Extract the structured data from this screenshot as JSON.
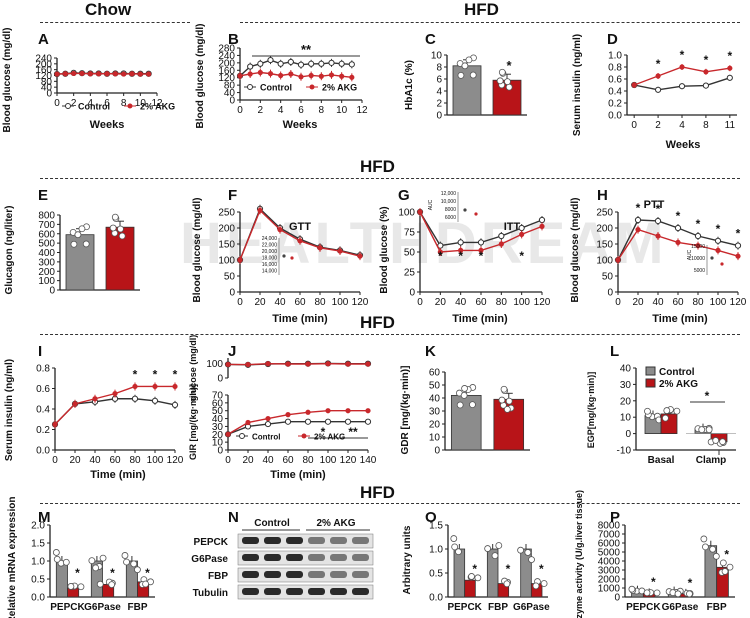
{
  "headers": {
    "chow": "Chow",
    "hfd1": "HFD",
    "hfd2": "HFD",
    "hfd3": "HFD",
    "hfd4": "HFD"
  },
  "watermark": "HEALTHDREAM",
  "legend": {
    "control": "Control",
    "akg": "2% AKG"
  },
  "colors": {
    "control": "#ffffff",
    "akg": "#c31a20",
    "gray_bar": "#8c8c8c",
    "red_bar": "#b81418",
    "line_red": "#c8282c"
  },
  "panels": {
    "A": {
      "label": "A",
      "ylabel": "Blood glucose (mg/dl)",
      "xlabel": "Weeks",
      "yticks": [
        "0",
        "40",
        "80",
        "120",
        "160",
        "200",
        "240"
      ],
      "xticks": [
        "0",
        "2",
        "4",
        "6",
        "8",
        "10",
        "12"
      ]
    },
    "B": {
      "label": "B",
      "ylabel": "Blood glucose (mg/dl)",
      "xlabel": "Weeks",
      "sig": "**",
      "yticks": [
        "0",
        "40",
        "80",
        "120",
        "160",
        "200",
        "240",
        "280"
      ],
      "xticks": [
        "0",
        "2",
        "4",
        "6",
        "8",
        "10",
        "12"
      ]
    },
    "C": {
      "label": "C",
      "ylabel": "HbA1c (%)",
      "sig": "*",
      "yticks": [
        "0",
        "2",
        "4",
        "6",
        "8",
        "10"
      ]
    },
    "D": {
      "label": "D",
      "ylabel": "Serum insulin (ng/ml)",
      "xlabel": "Weeks",
      "yticks": [
        "0.0",
        "0.2",
        "0.4",
        "0.6",
        "0.8",
        "1.0"
      ],
      "xticks": [
        "0",
        "2",
        "4",
        "8",
        "11"
      ]
    },
    "E": {
      "label": "E",
      "ylabel": "Glucagon (ng/liter)",
      "yticks": [
        "0",
        "100",
        "200",
        "300",
        "400",
        "500",
        "600",
        "700",
        "800"
      ]
    },
    "F": {
      "label": "F",
      "ylabel": "Blood glucose (mg/dl)",
      "xlabel": "Time (min)",
      "title": "GTT",
      "yticks": [
        "0",
        "50",
        "100",
        "150",
        "200",
        "250"
      ],
      "xticks": [
        "0",
        "20",
        "40",
        "60",
        "80",
        "100",
        "120"
      ],
      "inset_yticks": [
        "24,000",
        "22,000",
        "20,000",
        "18,000",
        "16,000",
        "14,000"
      ]
    },
    "G": {
      "label": "G",
      "ylabel": "Blood glucose (%)",
      "xlabel": "Time (min)",
      "title": "ITT",
      "yticks": [
        "0",
        "25",
        "50",
        "75",
        "100"
      ],
      "xticks": [
        "0",
        "20",
        "40",
        "60",
        "80",
        "100",
        "120"
      ],
      "inset_label": "AUC",
      "inset_yticks": [
        "12,000",
        "10,000",
        "8000",
        "6000"
      ]
    },
    "H": {
      "label": "H",
      "ylabel": "Blood glucose (mg/dl)",
      "xlabel": "Time (min)",
      "title": "PTT",
      "yticks": [
        "0",
        "50",
        "100",
        "150",
        "200",
        "250"
      ],
      "xticks": [
        "0",
        "20",
        "40",
        "60",
        "80",
        "100",
        "120"
      ],
      "inset_label": "AUC",
      "inset_yticks": [
        "15000",
        "10000",
        "5000"
      ]
    },
    "I": {
      "label": "I",
      "ylabel": "Serum insulin (ng/ml)",
      "xlabel": "Time (min)",
      "yticks": [
        "0.0",
        "0.2",
        "0.4",
        "0.6",
        "0.8"
      ],
      "xticks": [
        "0",
        "20",
        "40",
        "60",
        "80",
        "100",
        "120"
      ]
    },
    "J": {
      "label": "J",
      "ylabel_top": "glucose (mg/dl)",
      "ylabel_bottom": "GIR [mg/(kg·min)]",
      "xlabel": "Time (min)",
      "yticks_top": [
        "0",
        "100"
      ],
      "yticks_bottom": [
        "0",
        "10",
        "20",
        "30",
        "40",
        "50",
        "60",
        "70"
      ],
      "xticks": [
        "0",
        "20",
        "40",
        "60",
        "80",
        "100",
        "120",
        "140"
      ],
      "sig1": "*",
      "sig2": "**"
    },
    "K": {
      "label": "K",
      "ylabel": "GDR [mg/(kg·min)]",
      "yticks": [
        "0",
        "10",
        "20",
        "30",
        "40",
        "50",
        "60"
      ]
    },
    "L": {
      "label": "L",
      "ylabel": "EGP[mg/(kg·min)]",
      "yticks": [
        "-10",
        "0",
        "10",
        "20",
        "30",
        "40"
      ],
      "xticks": [
        "Basal",
        "Clamp"
      ],
      "sig": "*"
    },
    "M": {
      "label": "M",
      "ylabel": "Relative mRNA expression",
      "yticks": [
        "0.0",
        "0.5",
        "1.0",
        "1.5",
        "2.0"
      ],
      "xticks": [
        "PEPCK",
        "G6Pase",
        "FBP"
      ]
    },
    "N": {
      "label": "N",
      "group1": "Control",
      "group2": "2% AKG",
      "rows": [
        "PEPCK",
        "G6Pase",
        "FBP",
        "Tubulin"
      ]
    },
    "O": {
      "label": "O",
      "ylabel": "Arbitrary units",
      "yticks": [
        "0.0",
        "0.5",
        "1.0",
        "1.5"
      ],
      "xticks": [
        "PEPCK",
        "FBP",
        "G6Pase"
      ]
    },
    "P": {
      "label": "P",
      "ylabel": "Enzyme activity (U/g.liver tissue)",
      "yticks": [
        "0",
        "1000",
        "2000",
        "3000",
        "4000",
        "5000",
        "6000",
        "7000",
        "8000"
      ],
      "xticks": [
        "PEPCK",
        "G6Pase",
        "FBP"
      ]
    }
  },
  "chart_data": [
    {
      "panel": "A",
      "type": "line",
      "x": [
        0,
        1,
        2,
        3,
        4,
        5,
        6,
        7,
        8,
        9,
        10,
        11
      ],
      "ylim": [
        0,
        240
      ],
      "xlim": [
        0,
        12
      ],
      "series": [
        {
          "name": "Control",
          "values": [
            130,
            132,
            138,
            136,
            134,
            134,
            132,
            134,
            134,
            132,
            132,
            132
          ]
        },
        {
          "name": "2% AKG",
          "values": [
            130,
            132,
            134,
            134,
            132,
            132,
            132,
            132,
            130,
            132,
            130,
            130
          ]
        }
      ]
    },
    {
      "panel": "B",
      "type": "line",
      "x": [
        0,
        1,
        2,
        3,
        4,
        5,
        6,
        7,
        8,
        9,
        10,
        11
      ],
      "ylim": [
        0,
        280
      ],
      "xlim": [
        0,
        12
      ],
      "series": [
        {
          "name": "Control",
          "values": [
            130,
            180,
            195,
            215,
            195,
            205,
            190,
            195,
            195,
            200,
            195,
            192
          ]
        },
        {
          "name": "2% AKG",
          "values": [
            130,
            140,
            148,
            142,
            132,
            140,
            125,
            132,
            128,
            135,
            128,
            122
          ]
        }
      ]
    },
    {
      "panel": "C",
      "type": "bar",
      "categories": [
        "Control",
        "2% AKG"
      ],
      "values": [
        8.2,
        5.8
      ],
      "ylim": [
        0,
        10
      ]
    },
    {
      "panel": "D",
      "type": "line",
      "categories": [
        "0",
        "2",
        "4",
        "8",
        "11"
      ],
      "ylim": [
        0,
        1.0
      ],
      "series": [
        {
          "name": "Control",
          "values": [
            0.5,
            0.42,
            0.48,
            0.49,
            0.62
          ]
        },
        {
          "name": "2% AKG",
          "values": [
            0.5,
            0.65,
            0.8,
            0.72,
            0.78
          ]
        }
      ]
    },
    {
      "panel": "E",
      "type": "bar",
      "categories": [
        "Control",
        "2% AKG"
      ],
      "values": [
        590,
        670
      ],
      "ylim": [
        0,
        800
      ]
    },
    {
      "panel": "F",
      "type": "line",
      "x": [
        0,
        20,
        40,
        60,
        80,
        100,
        120
      ],
      "ylim": [
        0,
        250
      ],
      "series": [
        {
          "name": "Control",
          "values": [
            100,
            260,
            200,
            165,
            140,
            130,
            115
          ]
        },
        {
          "name": "2% AKG",
          "values": [
            100,
            255,
            195,
            160,
            138,
            128,
            112
          ]
        }
      ]
    },
    {
      "panel": "G",
      "type": "line",
      "x": [
        0,
        20,
        40,
        60,
        80,
        100,
        120
      ],
      "ylim": [
        0,
        100
      ],
      "series": [
        {
          "name": "Control",
          "values": [
            100,
            58,
            62,
            62,
            70,
            80,
            90
          ]
        },
        {
          "name": "2% AKG",
          "values": [
            100,
            50,
            52,
            52,
            60,
            72,
            82
          ]
        }
      ]
    },
    {
      "panel": "H",
      "type": "line",
      "x": [
        0,
        20,
        40,
        60,
        80,
        100,
        120
      ],
      "ylim": [
        0,
        250
      ],
      "series": [
        {
          "name": "Control",
          "values": [
            100,
            225,
            222,
            200,
            175,
            160,
            145
          ]
        },
        {
          "name": "2% AKG",
          "values": [
            100,
            195,
            175,
            155,
            145,
            130,
            112
          ]
        }
      ]
    },
    {
      "panel": "I",
      "type": "line",
      "x": [
        0,
        20,
        40,
        60,
        80,
        100,
        120
      ],
      "ylim": [
        0,
        0.8
      ],
      "series": [
        {
          "name": "Control",
          "values": [
            0.25,
            0.45,
            0.47,
            0.5,
            0.5,
            0.48,
            0.44
          ]
        },
        {
          "name": "2% AKG",
          "values": [
            0.25,
            0.45,
            0.5,
            0.55,
            0.62,
            0.62,
            0.62
          ]
        }
      ]
    },
    {
      "panel": "J",
      "type": "line",
      "x": [
        0,
        20,
        40,
        60,
        80,
        100,
        120,
        140
      ],
      "ylim": [
        0,
        70
      ],
      "series": [
        {
          "name": "Control",
          "values": [
            20,
            30,
            33,
            36,
            36,
            36,
            36,
            36
          ]
        },
        {
          "name": "2% AKG",
          "values": [
            20,
            35,
            40,
            45,
            48,
            50,
            50,
            50
          ]
        }
      ]
    },
    {
      "panel": "K",
      "type": "bar",
      "categories": [
        "Control",
        "2% AKG"
      ],
      "values": [
        42,
        39
      ],
      "ylim": [
        0,
        60
      ]
    },
    {
      "panel": "L",
      "type": "bar",
      "categories": [
        "Basal",
        "Clamp"
      ],
      "ylim": [
        -10,
        40
      ],
      "series": [
        {
          "name": "Control",
          "values": [
            11,
            3
          ]
        },
        {
          "name": "2% AKG",
          "values": [
            12,
            -5
          ]
        }
      ]
    },
    {
      "panel": "M",
      "type": "bar",
      "categories": [
        "PEPCK",
        "G6Pase",
        "FBP"
      ],
      "ylim": [
        0,
        2.0
      ],
      "series": [
        {
          "name": "Control",
          "values": [
            1.0,
            1.0,
            1.0
          ]
        },
        {
          "name": "2% AKG",
          "values": [
            0.25,
            0.35,
            0.42
          ]
        }
      ]
    },
    {
      "panel": "O",
      "type": "bar",
      "categories": [
        "PEPCK",
        "FBP",
        "G6Pase"
      ],
      "ylim": [
        0,
        1.5
      ],
      "series": [
        {
          "name": "Control",
          "values": [
            1.0,
            1.0,
            1.0
          ]
        },
        {
          "name": "2% AKG",
          "values": [
            0.35,
            0.28,
            0.28
          ]
        }
      ]
    },
    {
      "panel": "P",
      "type": "bar",
      "categories": [
        "PEPCK",
        "G6Pase",
        "FBP"
      ],
      "ylim": [
        0,
        8000
      ],
      "series": [
        {
          "name": "Control",
          "values": [
            700,
            600,
            5700
          ]
        },
        {
          "name": "2% AKG",
          "values": [
            400,
            350,
            3300
          ]
        }
      ]
    }
  ]
}
